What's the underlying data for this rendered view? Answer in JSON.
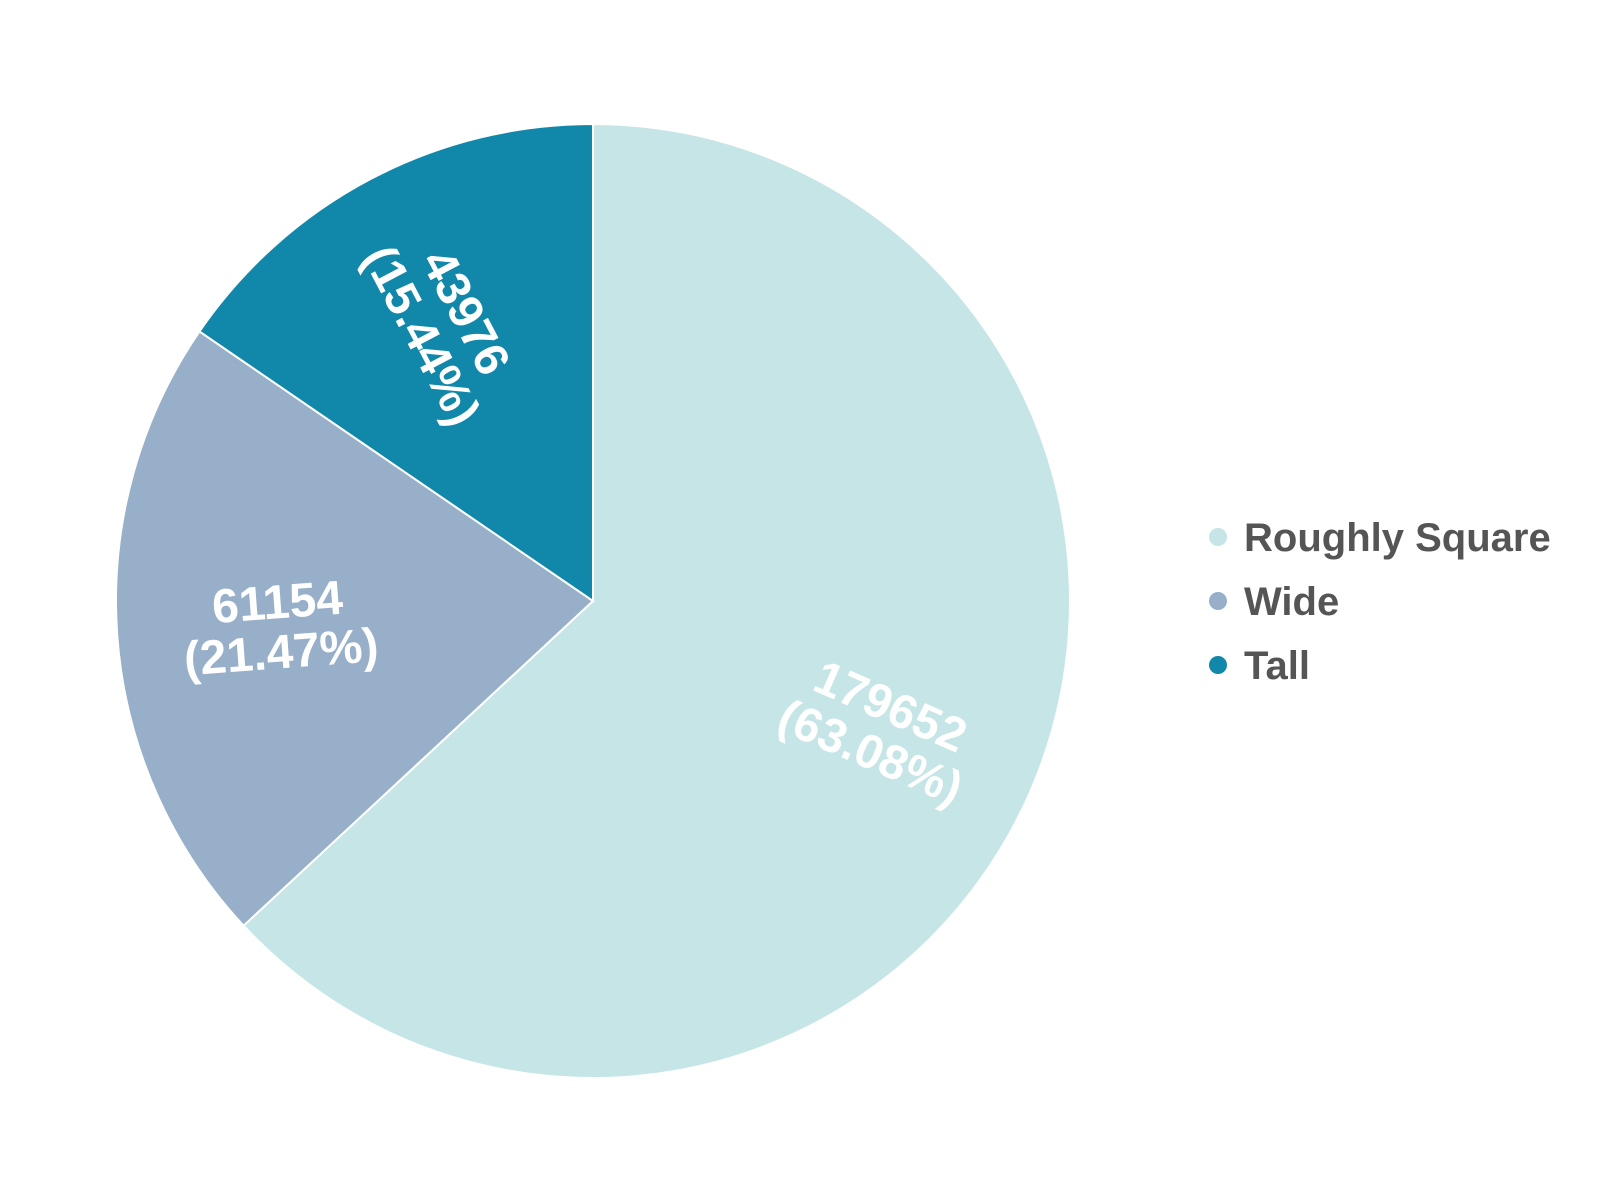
{
  "chart_data": {
    "type": "pie",
    "categories": [
      "Roughly Square",
      "Wide",
      "Tall"
    ],
    "values": [
      179652,
      61154,
      43976
    ],
    "percent_labels": [
      "(63.08%)",
      "(21.47%)",
      "(15.44%)"
    ],
    "colors": [
      "#c6e5e6",
      "#97afc8",
      "#1187aa"
    ],
    "start_angle_deg": 0,
    "direction": "clockwise",
    "legend": {
      "placement": "right",
      "marker": "circle"
    }
  }
}
